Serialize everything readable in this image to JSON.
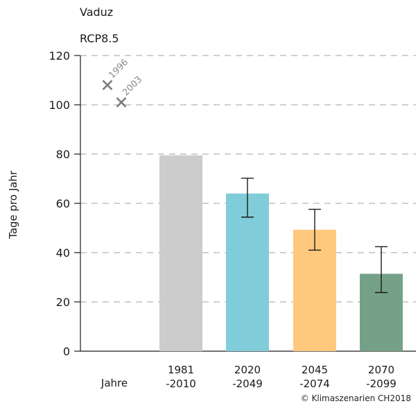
{
  "header": {
    "location": "Vaduz",
    "scenario": "RCP8.5"
  },
  "credit": "© Klimaszenarien CH2018",
  "chart_data": {
    "type": "bar",
    "ylabel": "Tage pro Jahr",
    "xlabel": "Jahre",
    "ylim": [
      0,
      120
    ],
    "yticks": [
      0,
      20,
      40,
      60,
      80,
      100,
      120
    ],
    "grid": "horizontal dashed",
    "categories": [
      {
        "line1": "1981",
        "line2": "-2010"
      },
      {
        "line1": "2020",
        "line2": "-2049"
      },
      {
        "line1": "2045",
        "line2": "-2074"
      },
      {
        "line1": "2070",
        "line2": "-2099"
      }
    ],
    "values": [
      79.5,
      64,
      49.3,
      31.4
    ],
    "error_low": [
      null,
      54.4,
      41,
      23.8
    ],
    "error_high": [
      null,
      70.2,
      57.6,
      42.4
    ],
    "colors": [
      "#cbcccb",
      "#81ccd9",
      "#fec87d",
      "#74a187"
    ],
    "annotations": [
      {
        "year": "1996",
        "value": 108
      },
      {
        "year": "2003",
        "value": 101
      }
    ]
  }
}
